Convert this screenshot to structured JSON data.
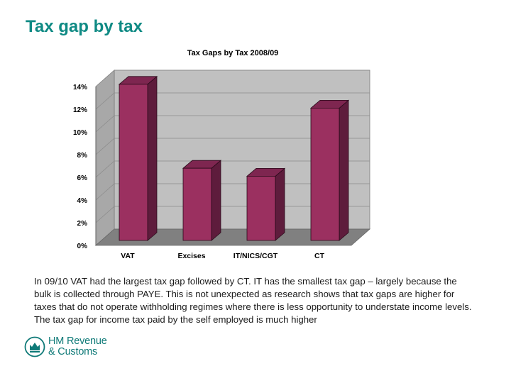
{
  "slide": {
    "title": "Tax gap by tax",
    "body": "In 09/10 VAT had the largest tax gap followed by CT. IT has the smallest tax gap – largely because the bulk is collected  through PAYE. This is not unexpected as research shows that tax gaps are higher for taxes that do not operate withholding regimes where there is less opportunity to understate income levels. The tax gap for income tax paid by the self employed is much higher"
  },
  "logo": {
    "line1": "HM Revenue",
    "line2": "& Customs",
    "color": "#0f7a78"
  },
  "chart_data": {
    "type": "bar",
    "title": "Tax Gaps by Tax 2008/09",
    "categories": [
      "VAT",
      "Excises",
      "IT/NICS/CGT",
      "CT"
    ],
    "values": [
      14.2,
      6.8,
      6.1,
      12.1
    ],
    "ylim": [
      0,
      14
    ],
    "yticks": [
      0,
      2,
      4,
      6,
      8,
      10,
      12,
      14
    ],
    "ytick_labels": [
      "0%",
      "2%",
      "4%",
      "6%",
      "8%",
      "10%",
      "12%",
      "14%"
    ],
    "xlabel": "",
    "ylabel": "",
    "grid": true,
    "style": "3d",
    "colors": {
      "bar": "#9b3060",
      "bar_top": "#7e2650",
      "bar_side": "#5e1c3c",
      "wall": "#c0c0c0",
      "floor": "#808080"
    }
  }
}
